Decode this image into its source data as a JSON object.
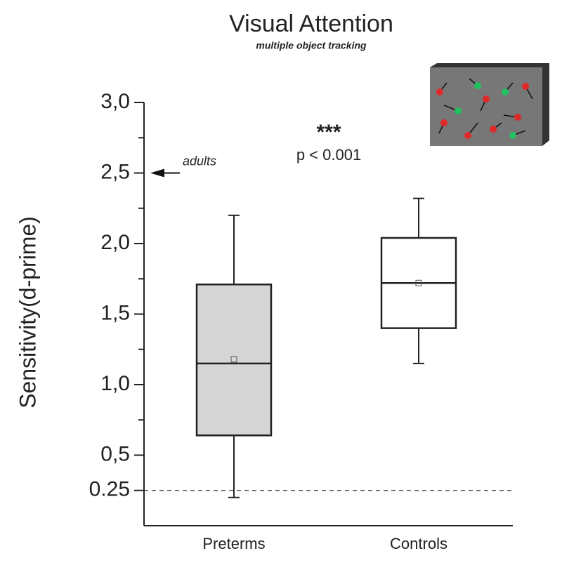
{
  "chart_data": {
    "type": "box",
    "title": "Visual Attention",
    "subtitle": "multiple object tracking",
    "ylabel": "Sensitivity(d-prime)",
    "categories": [
      "Preterms",
      "Controls"
    ],
    "boxes": [
      {
        "color": "#d6d6d6",
        "min": 0.2,
        "q1": 0.64,
        "median": 1.15,
        "q3": 1.71,
        "max": 2.2,
        "mean": 1.18
      },
      {
        "color": "#ffffff",
        "min": 1.15,
        "q1": 1.4,
        "median": 1.72,
        "q3": 2.04,
        "max": 2.32,
        "mean": 1.72
      }
    ],
    "ylim": [
      0,
      3.0
    ],
    "yticks": [
      0.25,
      {
        "value": 0.5,
        "label": "0,5"
      },
      {
        "value": 1.0,
        "label": "1,0"
      },
      {
        "value": 1.5,
        "label": "1,5"
      },
      {
        "value": 2.0,
        "label": "2,0"
      },
      {
        "value": 2.5,
        "label": "2,5"
      },
      {
        "value": 3.0,
        "label": "3,0"
      }
    ],
    "minor_yticks": [
      0.75,
      1.25,
      1.75,
      2.25,
      2.75
    ],
    "reference_line": 0.25,
    "adults": {
      "text": "adults",
      "value": 2.5
    },
    "significance": "***",
    "p_value": "p < 0.001"
  }
}
